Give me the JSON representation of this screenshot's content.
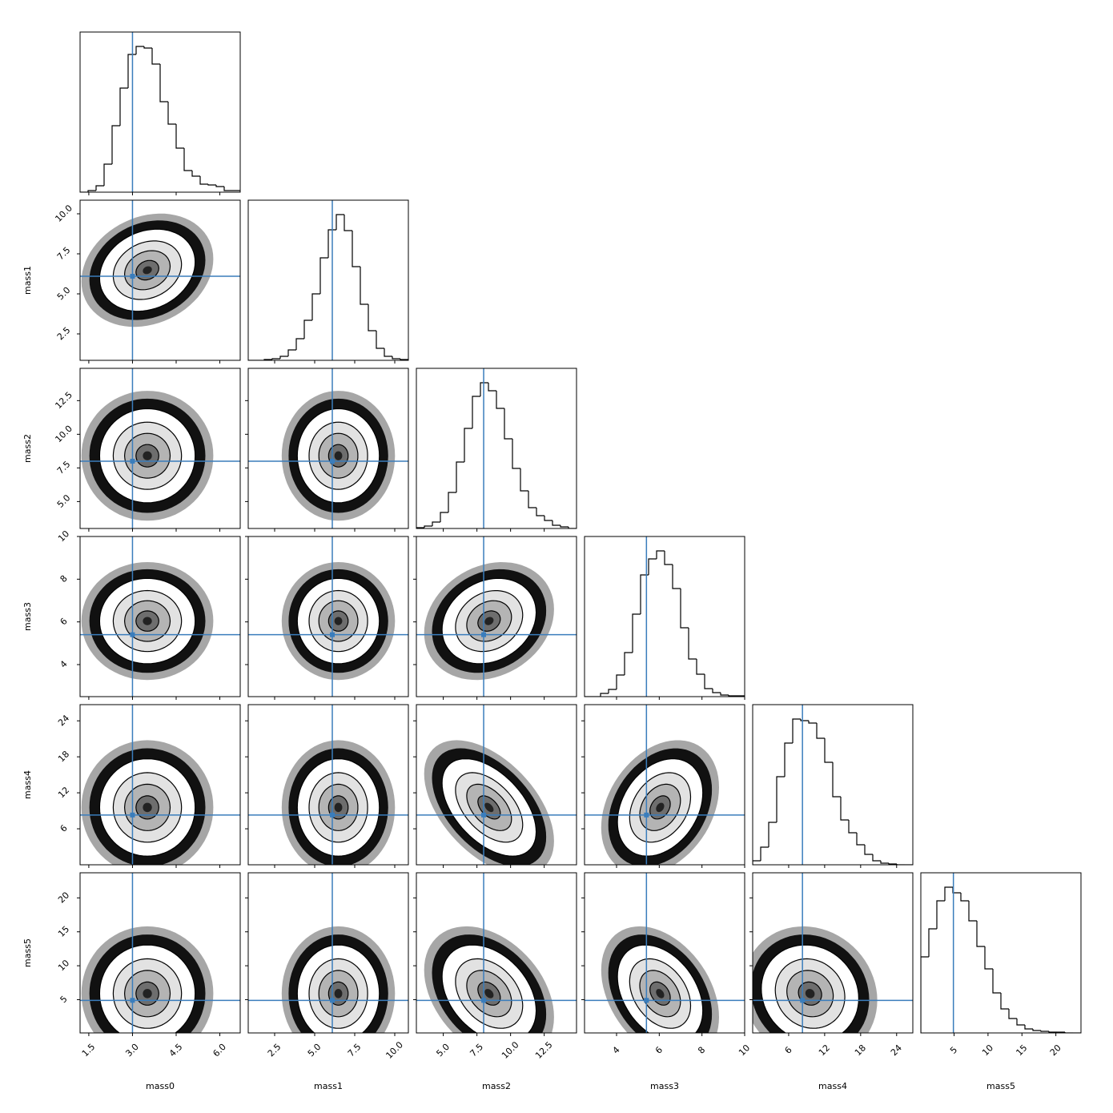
{
  "chart_data": {
    "type": "corner",
    "truth_color": "#3a7dbc",
    "variables": [
      {
        "label": "mass0",
        "xlim": [
          1.2,
          6.7
        ],
        "xticks": [
          1.5,
          {
            "value": 3,
            "label": "3.0"
          },
          4.5,
          {
            "value": 6,
            "label": "6.0"
          }
        ],
        "truth": 3.0,
        "bins": [
          1.2,
          1.475,
          1.75,
          2.025,
          2.3,
          2.575,
          2.85,
          3.125,
          3.4,
          3.675,
          3.95,
          4.225,
          4.5,
          4.775,
          5.05,
          5.325,
          5.6,
          5.875,
          6.15,
          6.425,
          6.7
        ],
        "counts": [
          0,
          2,
          8,
          35,
          83,
          130,
          172,
          182,
          180,
          160,
          113,
          85,
          55,
          27,
          20,
          10,
          9,
          7,
          2,
          2
        ],
        "ylim": [
          0,
          200
        ]
      },
      {
        "label": "mass1",
        "xlim": [
          0.85,
          10.85
        ],
        "xticks": [
          2.5,
          {
            "value": 5,
            "label": "5.0"
          },
          7.5,
          {
            "value": 10,
            "label": "10.0"
          }
        ],
        "truth": 6.1,
        "bins": [
          0.85,
          1.35,
          1.85,
          2.35,
          2.85,
          3.35,
          3.85,
          4.35,
          4.85,
          5.35,
          5.85,
          6.35,
          6.85,
          7.35,
          7.85,
          8.35,
          8.85,
          9.35,
          9.85,
          10.35,
          10.85
        ],
        "counts": [
          0,
          0,
          1,
          2,
          5,
          13,
          27,
          50,
          83,
          128,
          163,
          182,
          162,
          117,
          70,
          37,
          15,
          5,
          2,
          1
        ],
        "ylim": [
          0,
          200
        ]
      },
      {
        "label": "mass2",
        "xlim": [
          3.0,
          14.9
        ],
        "xticks": [
          {
            "value": 5,
            "label": "5.0"
          },
          7.5,
          {
            "value": 10,
            "label": "10.0"
          },
          12.5
        ],
        "truth": 8.0,
        "bins": [
          3.0,
          3.595,
          4.19,
          4.785,
          5.38,
          5.975,
          6.57,
          7.165,
          7.76,
          8.355,
          8.95,
          9.545,
          10.14,
          10.735,
          11.33,
          11.925,
          12.52,
          13.115,
          13.71,
          14.305,
          14.9
        ],
        "counts": [
          1,
          3,
          8,
          20,
          45,
          83,
          125,
          165,
          182,
          172,
          150,
          112,
          75,
          47,
          26,
          16,
          10,
          4,
          2,
          0
        ],
        "ylim": [
          0,
          200
        ]
      },
      {
        "label": "mass3",
        "xlim": [
          2.5,
          10.0
        ],
        "xticks": [
          4,
          6,
          8,
          10
        ],
        "truth": 5.4,
        "bins": [
          2.5,
          2.875,
          3.25,
          3.625,
          4.0,
          4.375,
          4.75,
          5.125,
          5.5,
          5.875,
          6.25,
          6.625,
          7.0,
          7.375,
          7.75,
          8.125,
          8.5,
          8.875,
          9.25,
          9.625,
          10.0
        ],
        "counts": [
          0,
          0,
          4,
          9,
          27,
          55,
          103,
          152,
          172,
          182,
          165,
          135,
          86,
          47,
          28,
          10,
          5,
          2,
          1,
          1
        ],
        "ylim": [
          0,
          200
        ]
      },
      {
        "label": "mass4",
        "xlim": [
          0,
          26.7
        ],
        "xticks": [
          6,
          12,
          18,
          24
        ],
        "truth": 8.3,
        "bins": [
          0,
          1.335,
          2.67,
          4.005,
          5.34,
          6.675,
          8.01,
          9.345,
          10.68,
          12.015,
          13.35,
          14.685,
          16.02,
          17.355,
          18.69,
          20.025,
          21.36,
          22.695,
          24.03,
          25.365,
          26.7
        ],
        "counts": [
          5,
          22,
          53,
          110,
          152,
          182,
          180,
          177,
          158,
          128,
          85,
          56,
          40,
          25,
          13,
          5,
          2,
          1,
          0,
          0
        ],
        "ylim": [
          0,
          200
        ]
      },
      {
        "label": "mass5",
        "xlim": [
          0.1,
          23.7
        ],
        "xticks": [
          5,
          10,
          15,
          20
        ],
        "truth": 4.9,
        "bins": [
          0.1,
          1.28,
          2.46,
          3.64,
          4.82,
          6.0,
          7.18,
          8.36,
          9.54,
          10.72,
          11.9,
          13.08,
          14.26,
          15.44,
          16.62,
          17.8,
          18.98,
          20.16,
          21.34,
          22.52,
          23.7
        ],
        "counts": [
          95,
          130,
          165,
          182,
          175,
          165,
          140,
          108,
          80,
          50,
          30,
          18,
          10,
          5,
          3,
          2,
          1,
          1,
          0,
          0
        ],
        "ylim": [
          0,
          200
        ]
      }
    ],
    "pairs": [
      {
        "x": 0,
        "y": 1,
        "correlation": 0.2
      },
      {
        "x": 0,
        "y": 2,
        "correlation": 0.0
      },
      {
        "x": 1,
        "y": 2,
        "correlation": 0.0
      },
      {
        "x": 0,
        "y": 3,
        "correlation": 0.0
      },
      {
        "x": 1,
        "y": 3,
        "correlation": 0.0
      },
      {
        "x": 2,
        "y": 3,
        "correlation": 0.2
      },
      {
        "x": 0,
        "y": 4,
        "correlation": 0.0
      },
      {
        "x": 1,
        "y": 4,
        "correlation": 0.0
      },
      {
        "x": 2,
        "y": 4,
        "correlation": -0.5
      },
      {
        "x": 3,
        "y": 4,
        "correlation": 0.3
      },
      {
        "x": 0,
        "y": 5,
        "correlation": 0.0
      },
      {
        "x": 1,
        "y": 5,
        "correlation": 0.0
      },
      {
        "x": 2,
        "y": 5,
        "correlation": -0.35
      },
      {
        "x": 3,
        "y": 5,
        "correlation": -0.35
      },
      {
        "x": 4,
        "y": 5,
        "correlation": -0.1
      }
    ]
  }
}
